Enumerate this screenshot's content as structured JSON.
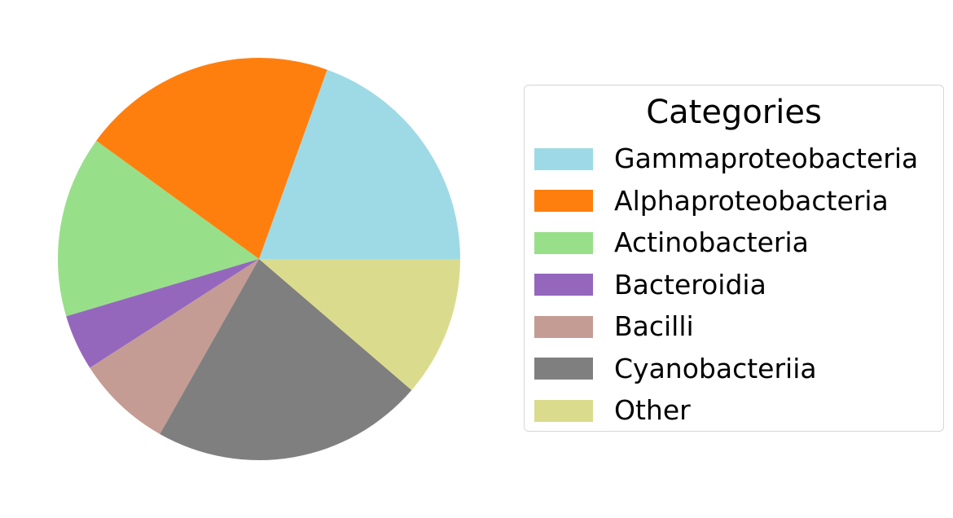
{
  "chart_data": {
    "type": "pie",
    "categories": [
      "Gammaproteobacteria",
      "Alphaproteobacteria",
      "Actinobacteria",
      "Bacteroidia",
      "Bacilli",
      "Cyanobacteriia",
      "Other"
    ],
    "values": [
      19.5,
      20.5,
      14.6,
      4.5,
      7.7,
      21.9,
      11.3
    ],
    "colors": [
      "#9edae5",
      "#ff7f0e",
      "#98df8a",
      "#9467bd",
      "#c49c94",
      "#7f7f7f",
      "#dbdb8d"
    ],
    "start_angle_deg": 0,
    "direction": "counterclockwise",
    "legend": {
      "title": "Categories",
      "placement": "right"
    }
  }
}
